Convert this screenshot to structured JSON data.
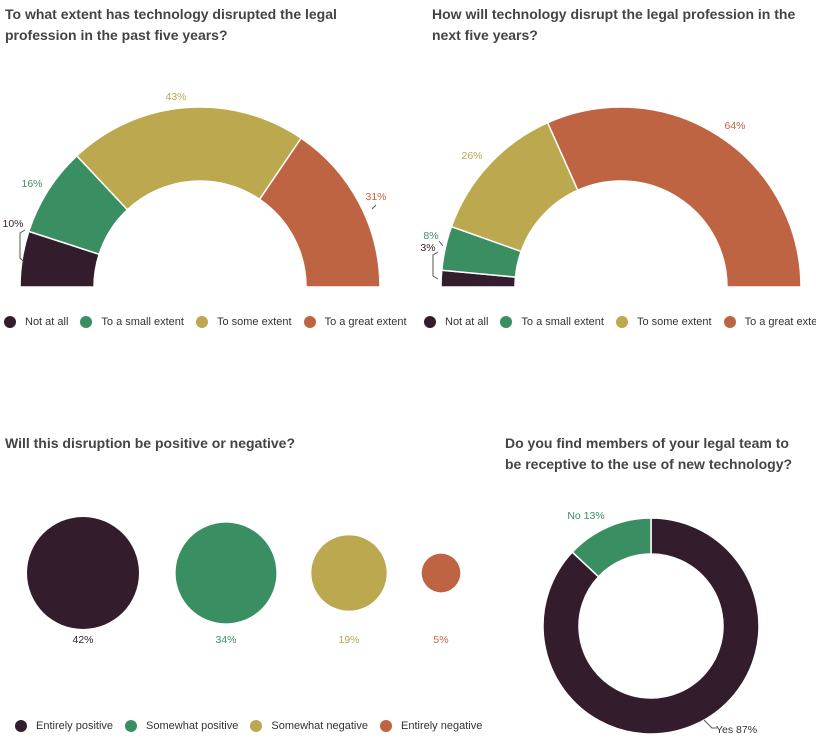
{
  "colors": {
    "not_at_all": "#331d2c",
    "small": "#3a8f62",
    "some": "#bca84e",
    "great": "#bf6442",
    "title": "#444444"
  },
  "chart_data": [
    {
      "type": "pie",
      "variant": "semicircle-donut",
      "title": "To what extent has technology disrupted the legal profession in the past five years?",
      "categories": [
        "Not at all",
        "To a small extent",
        "To some extent",
        "To a great extent"
      ],
      "values": [
        10,
        16,
        43,
        31
      ],
      "data_labels": [
        "10%",
        "16%",
        "43%",
        "31%"
      ],
      "legend_position": "bottom-left"
    },
    {
      "type": "pie",
      "variant": "semicircle-donut",
      "title": "How will technology disrupt the legal profession in the next five years?",
      "categories": [
        "Not at all",
        "To a small extent",
        "To some extent",
        "To a great extent"
      ],
      "values": [
        3,
        8,
        26,
        64
      ],
      "data_labels": [
        "3%",
        "8%",
        "26%",
        "64%"
      ],
      "legend_position": "bottom-left"
    },
    {
      "type": "scatter",
      "variant": "proportional-bubbles",
      "title": "Will this disruption be positive or negative?",
      "categories": [
        "Entirely positive",
        "Somewhat positive",
        "Somewhat negative",
        "Entirely negative"
      ],
      "values": [
        42,
        34,
        19,
        5
      ],
      "data_labels": [
        "42%",
        "34%",
        "19%",
        "5%"
      ],
      "legend_position": "bottom-left"
    },
    {
      "type": "pie",
      "variant": "donut",
      "title": "Do you find members of your legal team to be receptive to the use of new technology?",
      "categories": [
        "Yes",
        "No"
      ],
      "values": [
        87,
        13
      ],
      "data_labels": [
        "Yes 87%",
        "No 13%"
      ]
    }
  ]
}
